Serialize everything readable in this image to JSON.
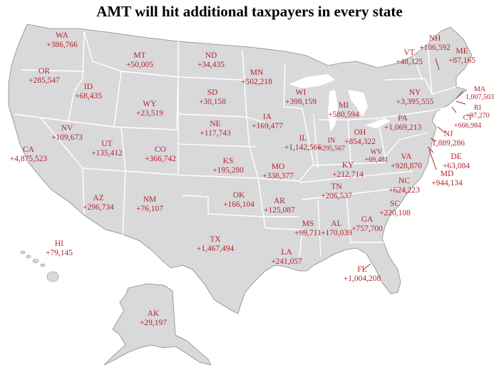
{
  "title": "AMT will hit additional taxpayers in every state",
  "colors": {
    "land": "#d9d9db",
    "border": "#ffffff",
    "outline": "#8a8a8a",
    "label": "#b3262b",
    "leader": "#b3262b"
  },
  "states": [
    {
      "abbr": "WA",
      "value": "+386,766"
    },
    {
      "abbr": "OR",
      "value": "+285,547"
    },
    {
      "abbr": "CA",
      "value": "+4,875,523"
    },
    {
      "abbr": "ID",
      "value": "+68,435"
    },
    {
      "abbr": "NV",
      "value": "+109,673"
    },
    {
      "abbr": "MT",
      "value": "+50,005"
    },
    {
      "abbr": "WY",
      "value": "+23,519"
    },
    {
      "abbr": "UT",
      "value": "+135,412"
    },
    {
      "abbr": "AZ",
      "value": "+296,734"
    },
    {
      "abbr": "CO",
      "value": "+366,742"
    },
    {
      "abbr": "NM",
      "value": "+76,107"
    },
    {
      "abbr": "ND",
      "value": "+34,435"
    },
    {
      "abbr": "SD",
      "value": "+30,158"
    },
    {
      "abbr": "NE",
      "value": "+117,743"
    },
    {
      "abbr": "KS",
      "value": "+195,280"
    },
    {
      "abbr": "OK",
      "value": "+166,104"
    },
    {
      "abbr": "TX",
      "value": "+1,467,494"
    },
    {
      "abbr": "MN",
      "value": "+502,218"
    },
    {
      "abbr": "IA",
      "value": "+169,477"
    },
    {
      "abbr": "MO",
      "value": "+338,377"
    },
    {
      "abbr": "AR",
      "value": "+125,087"
    },
    {
      "abbr": "LA",
      "value": "+241,057"
    },
    {
      "abbr": "WI",
      "value": "+398,159"
    },
    {
      "abbr": "IL",
      "value": "+1,142,566"
    },
    {
      "abbr": "MI",
      "value": "+580,594"
    },
    {
      "abbr": "IN",
      "value": "+295,567"
    },
    {
      "abbr": "OH",
      "value": "+854,322"
    },
    {
      "abbr": "KY",
      "value": "+212,714"
    },
    {
      "abbr": "TN",
      "value": "+206,537"
    },
    {
      "abbr": "MS",
      "value": "+99,711"
    },
    {
      "abbr": "AL",
      "value": "+170,039"
    },
    {
      "abbr": "GA",
      "value": "+757,700"
    },
    {
      "abbr": "FL",
      "value": "+1,004,208"
    },
    {
      "abbr": "SC",
      "value": "+220,108"
    },
    {
      "abbr": "NC",
      "value": "+624,223"
    },
    {
      "abbr": "VA",
      "value": "+928,870"
    },
    {
      "abbr": "WV",
      "value": "+69,481"
    },
    {
      "abbr": "PA",
      "value": "+1,069,213"
    },
    {
      "abbr": "NY",
      "value": "+3,395,555"
    },
    {
      "abbr": "VT",
      "value": "+48,325"
    },
    {
      "abbr": "NH",
      "value": "+106,592"
    },
    {
      "abbr": "ME",
      "value": "+87,165"
    },
    {
      "abbr": "MA",
      "value": "1,007,503"
    },
    {
      "abbr": "RI",
      "value": "+97,270"
    },
    {
      "abbr": "CT",
      "value": "+666,984"
    },
    {
      "abbr": "NJ",
      "value": "1,889,286"
    },
    {
      "abbr": "DE",
      "value": "+63,084"
    },
    {
      "abbr": "MD",
      "value": "+944,134"
    },
    {
      "abbr": "HI",
      "value": "+79,145"
    },
    {
      "abbr": "AK",
      "value": "+29,197"
    }
  ]
}
